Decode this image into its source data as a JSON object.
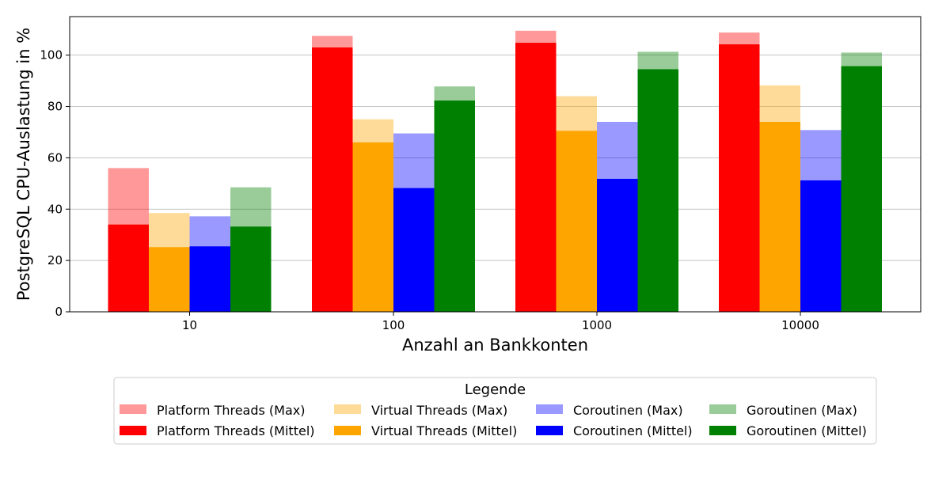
{
  "chart_data": {
    "type": "bar",
    "xlabel": "Anzahl an Bankkonten",
    "ylabel": "PostgreSQL CPU-Auslastung in %",
    "categories": [
      "10",
      "100",
      "1000",
      "10000"
    ],
    "ylim": [
      0,
      115
    ],
    "yticks": [
      0,
      20,
      40,
      60,
      80,
      100
    ],
    "grid": "y",
    "legend": {
      "title": "Legende",
      "placement": "bottom-center"
    },
    "series": [
      {
        "name": "Platform Threads",
        "max_label": "Platform Threads (Max)",
        "mean_label": "Platform Threads (Mittel)",
        "color": "#ff0000",
        "max": [
          56,
          107.5,
          109.5,
          108.8
        ],
        "mean": [
          34,
          103,
          104.8,
          104.2
        ]
      },
      {
        "name": "Virtual Threads",
        "max_label": "Virtual Threads (Max)",
        "mean_label": "Virtual Threads (Mittel)",
        "color": "#ffa500",
        "max": [
          38.5,
          75,
          84,
          88.2
        ],
        "mean": [
          25.2,
          66,
          70.5,
          74
        ]
      },
      {
        "name": "Coroutinen",
        "max_label": "Coroutinen (Max)",
        "mean_label": "Coroutinen (Mittel)",
        "color": "#0000ff",
        "max": [
          37.2,
          69.5,
          74,
          70.8
        ],
        "mean": [
          25.5,
          48.2,
          51.8,
          51.2
        ]
      },
      {
        "name": "Goroutinen",
        "max_label": "Goroutinen (Max)",
        "mean_label": "Goroutinen (Mittel)",
        "color": "#008000",
        "max": [
          48.5,
          87.8,
          101.3,
          101
        ],
        "mean": [
          33.2,
          82.3,
          94.5,
          95.7
        ]
      }
    ]
  }
}
